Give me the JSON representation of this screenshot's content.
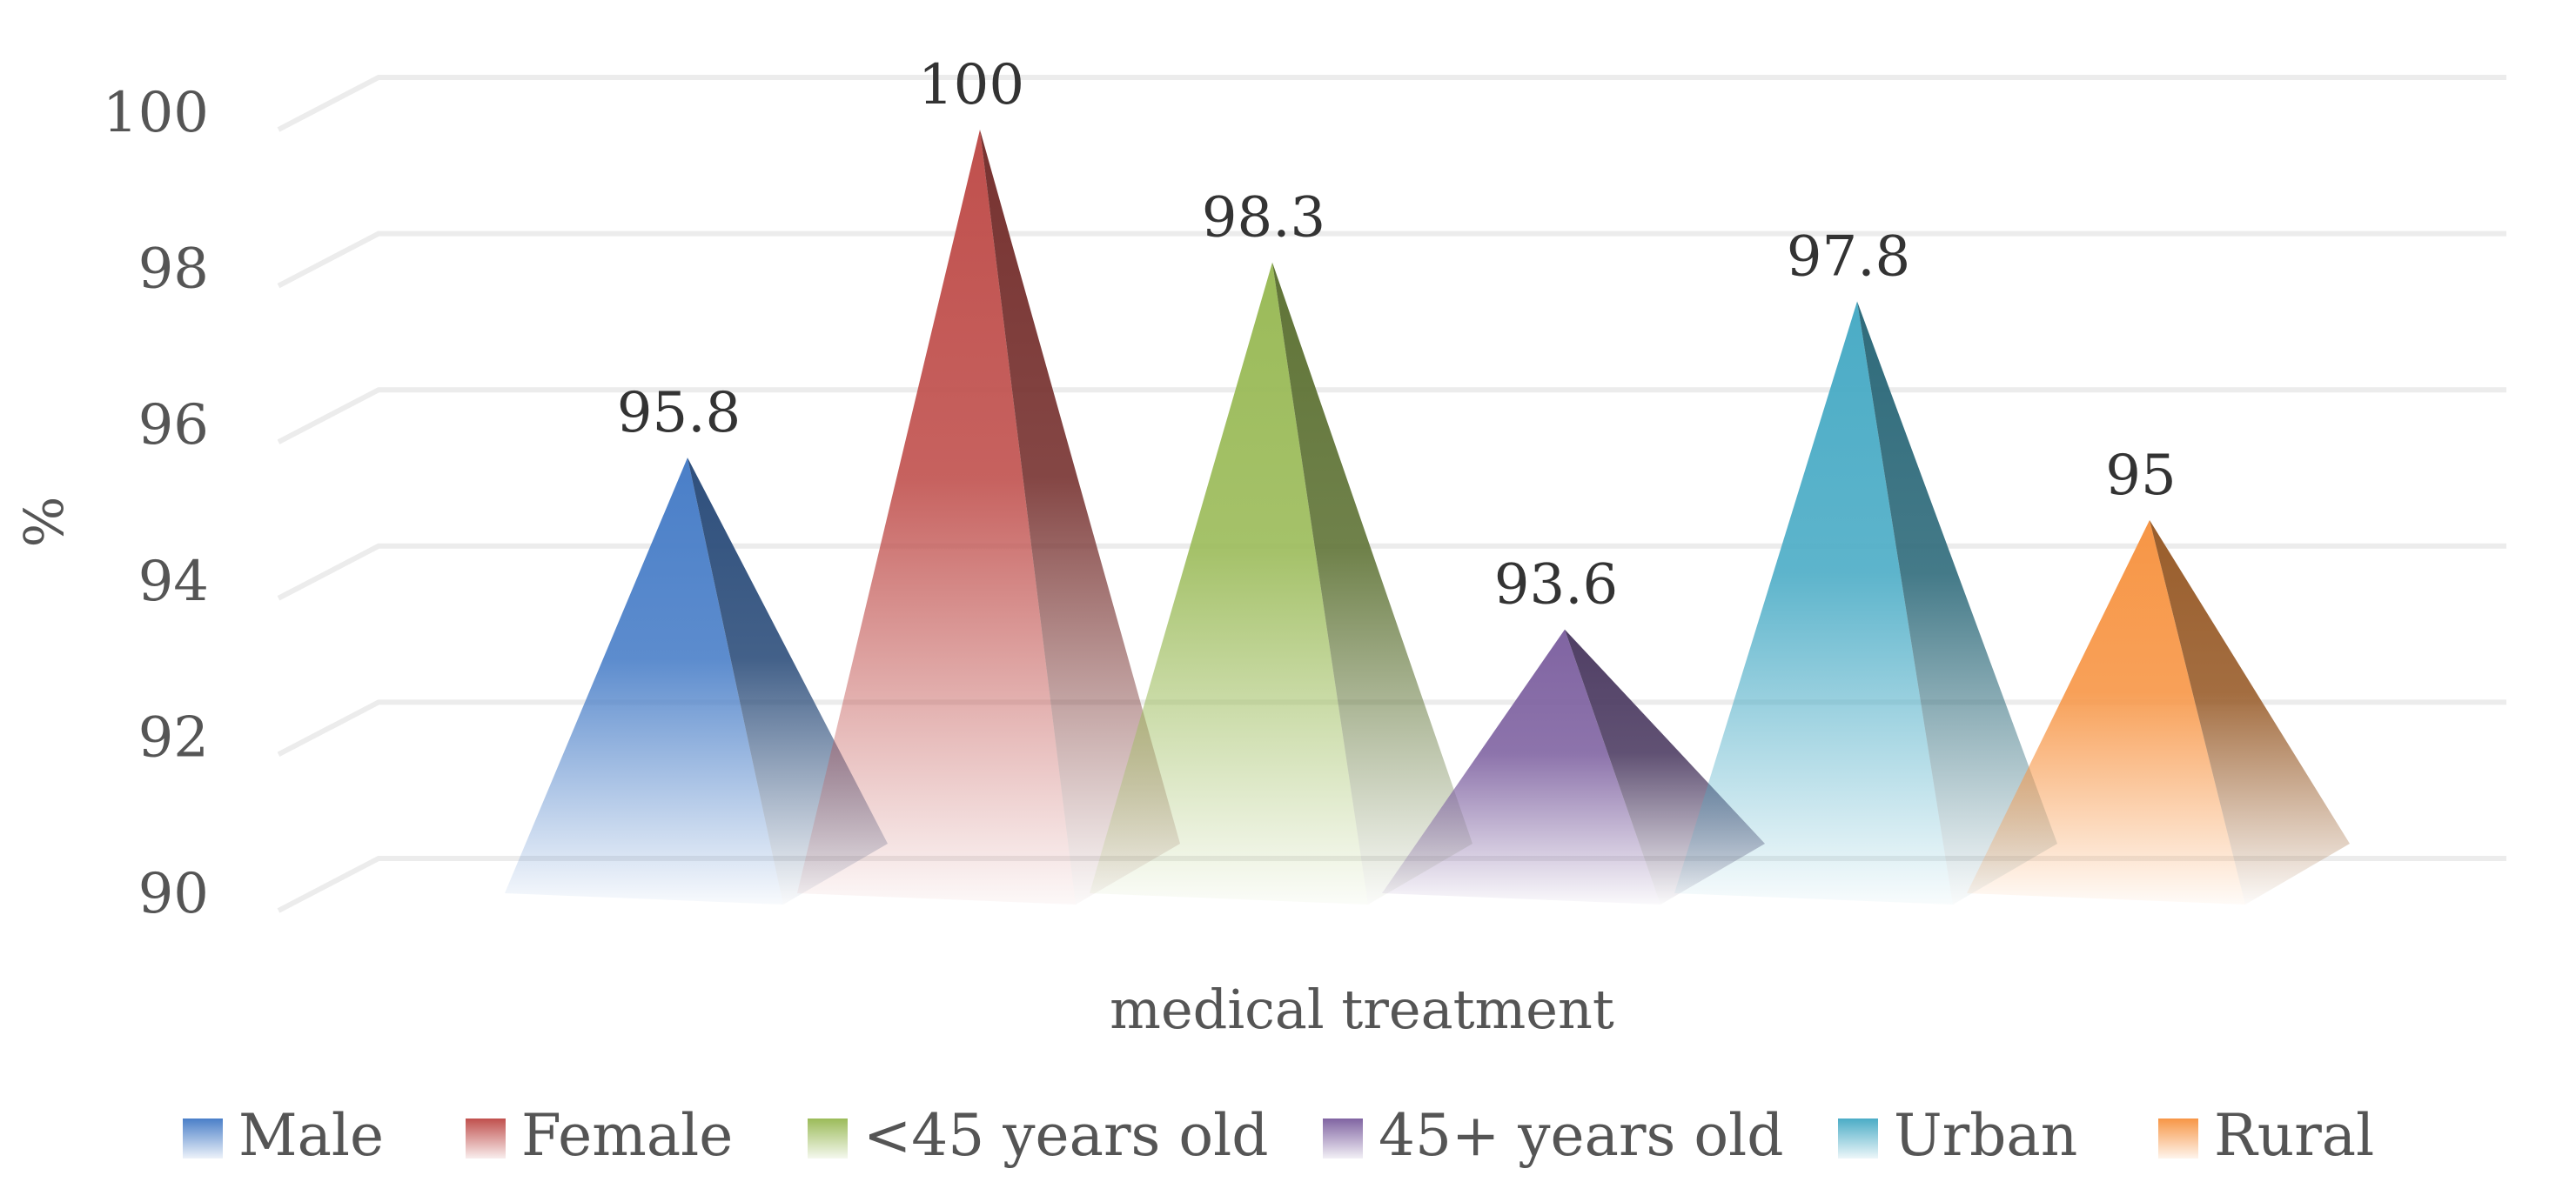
{
  "chart_data": {
    "type": "bar",
    "style": "3d-pyramid",
    "categories": [
      "medical treatment"
    ],
    "series": [
      {
        "name": "Male",
        "values": [
          95.8
        ],
        "label": "95.8",
        "color": "#4a7fc8"
      },
      {
        "name": "Female",
        "values": [
          100
        ],
        "label": "100",
        "color": "#c0504d"
      },
      {
        "name": "<45 years old",
        "values": [
          98.3
        ],
        "label": "98.3",
        "color": "#9bbb59"
      },
      {
        "name": "45+ years old",
        "values": [
          93.6
        ],
        "label": "93.6",
        "color": "#8064a2"
      },
      {
        "name": "Urban",
        "values": [
          97.8
        ],
        "label": "97.8",
        "color": "#4bacc6"
      },
      {
        "name": "Rural",
        "values": [
          95
        ],
        "label": "95",
        "color": "#f79646"
      }
    ],
    "title": "",
    "xlabel": "medical treatment",
    "ylabel": "%",
    "ylim": [
      90,
      100
    ],
    "yticks": [
      "90",
      "92",
      "94",
      "96",
      "98",
      "100"
    ],
    "grid": true,
    "legend": "bottom"
  }
}
